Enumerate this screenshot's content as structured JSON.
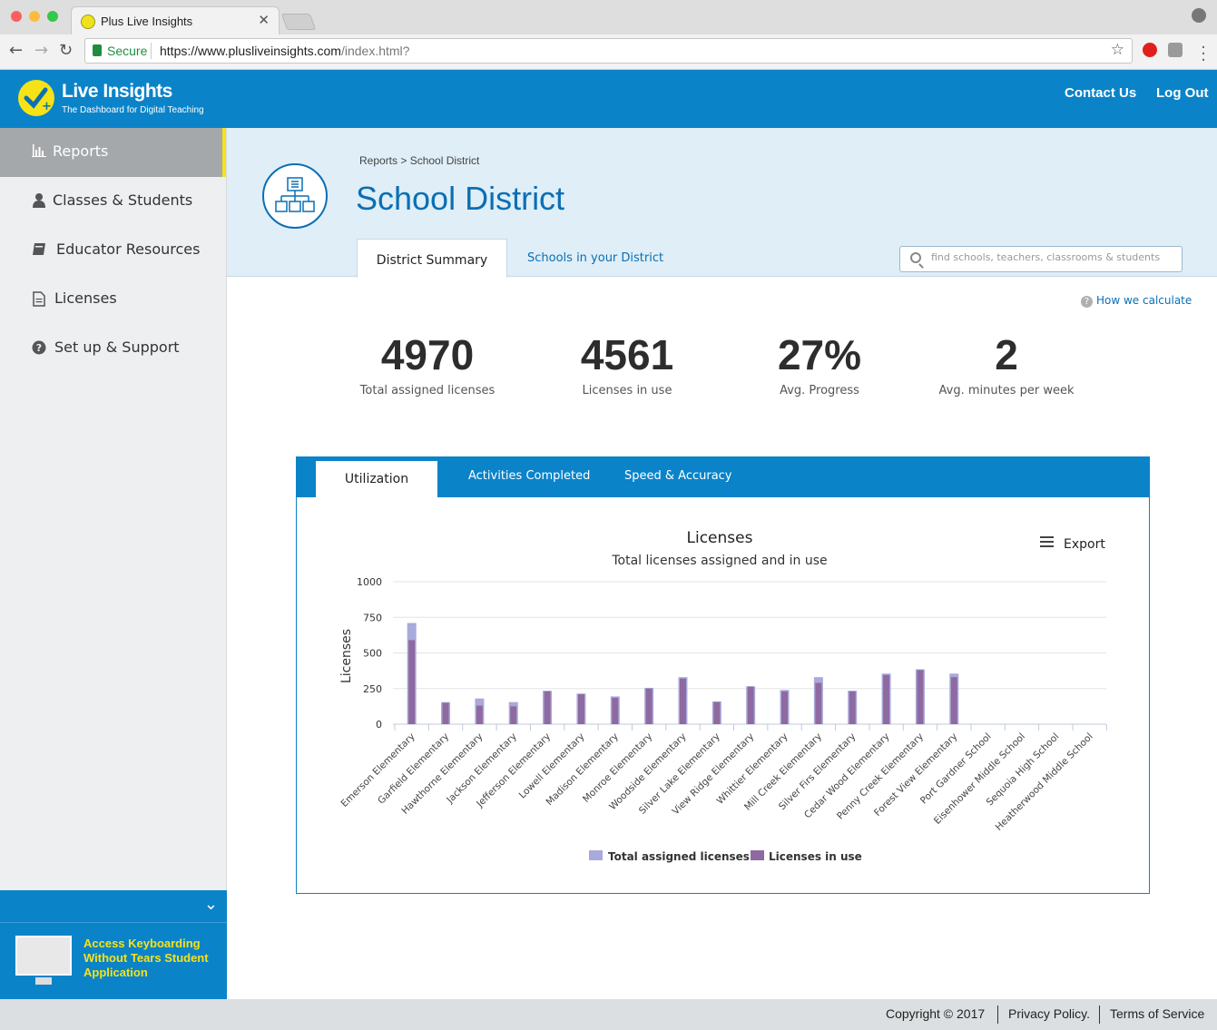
{
  "browser": {
    "tab_title": "Plus Live Insights",
    "secure_label": "Secure",
    "url_main": "https://www.plusliveinsights.com",
    "url_rest": "/index.html?"
  },
  "header": {
    "logo_title": "Live Insights",
    "logo_sub": "The Dashboard for Digital Teaching",
    "contact_label": "Contact Us",
    "logout_label": "Log Out"
  },
  "sidebar": {
    "items": [
      {
        "label": "Reports",
        "icon": "bar-chart-icon"
      },
      {
        "label": "Classes & Students",
        "icon": "user-icon"
      },
      {
        "label": "Educator Resources",
        "icon": "book-icon"
      },
      {
        "label": "Licenses",
        "icon": "document-icon"
      },
      {
        "label": "Set up & Support",
        "icon": "question-icon"
      }
    ],
    "promo": "Access Keyboarding Without Tears Student Application"
  },
  "page": {
    "breadcrumb": "Reports >  School District",
    "title": "School District",
    "tabs": [
      "District Summary",
      "Schools in your District"
    ],
    "search_placeholder": "find schools, teachers, classrooms & students",
    "how_calc": "How we calculate"
  },
  "stats": [
    {
      "value": "4970",
      "label": "Total assigned licenses"
    },
    {
      "value": "4561",
      "label": "Licenses in use"
    },
    {
      "value": "27%",
      "label": "Avg. Progress"
    },
    {
      "value": "2",
      "label": "Avg. minutes per week"
    }
  ],
  "panel": {
    "tabs": [
      "Utilization",
      "Activities Completed",
      "Speed & Accuracy"
    ],
    "export_label": "Export"
  },
  "colors": {
    "brand": "#0a83c9",
    "accent": "#f5e318",
    "series_assigned": "#a8a9dc",
    "series_in_use": "#8e6aa0"
  },
  "chart_data": {
    "type": "bar",
    "title": "Licenses",
    "subtitle": "Total licenses assigned and in use",
    "ylabel": "Licenses",
    "ylim": [
      0,
      1000
    ],
    "yticks": [
      "0",
      "250",
      "500",
      "750",
      "1000"
    ],
    "legend_position": "bottom",
    "categories": [
      "Emerson Elementary",
      "Garfield Elementary",
      "Hawthorne Elementary",
      "Jackson Elementary",
      "Jefferson Elementary",
      "Lowell Elementary",
      "Madison Elementary",
      "Monroe Elementary",
      "Woodside Elementary",
      "Silver Lake Elementary",
      "View Ridge Elementary",
      "Whittier Elementary",
      "Mill Creek Elementary",
      "Silver Firs Elementary",
      "Cedar Wood Elementary",
      "Penny Creek Elementary",
      "Forest View Elementary",
      "Port Gardner School",
      "Eisenhower Middle School",
      "Sequoia High School",
      "Heatherwood Middle School"
    ],
    "series": [
      {
        "name": "Total assigned licenses",
        "values": [
          710,
          155,
          180,
          155,
          235,
          215,
          195,
          255,
          330,
          160,
          265,
          240,
          330,
          235,
          355,
          385,
          355,
          0,
          0,
          0,
          0
        ]
      },
      {
        "name": "Licenses in use",
        "values": [
          590,
          150,
          130,
          125,
          230,
          210,
          185,
          250,
          320,
          155,
          265,
          230,
          290,
          230,
          345,
          380,
          330,
          0,
          0,
          0,
          0
        ]
      }
    ]
  },
  "footer": {
    "copyright": "Copyright © 2017",
    "privacy": "Privacy Policy.",
    "terms": "Terms of Service"
  }
}
